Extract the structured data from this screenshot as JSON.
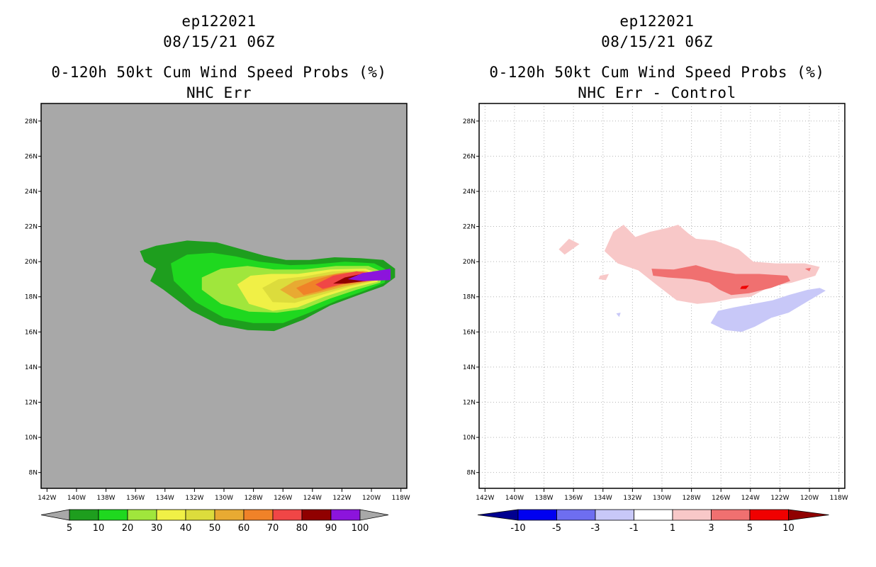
{
  "colors": {
    "land_gray": "#a8a8a8",
    "outline": "#000000",
    "grid": "#b4b4b4"
  },
  "chart_data": [
    {
      "type": "heatmap",
      "storm_id": "ep122021",
      "datetime": "08/15/21 06Z",
      "title": "0-120h 50kt Cum Wind Speed Probs (%)",
      "subtitle": "NHC Err",
      "x_ticks": [
        "142W",
        "140W",
        "138W",
        "136W",
        "134W",
        "132W",
        "130W",
        "128W",
        "126W",
        "124W",
        "122W",
        "120W",
        "118W"
      ],
      "x_values": [
        -142,
        -140,
        -138,
        -136,
        -134,
        -132,
        -130,
        -128,
        -126,
        -124,
        -122,
        -120,
        -118
      ],
      "y_ticks": [
        "8N",
        "10N",
        "12N",
        "14N",
        "16N",
        "18N",
        "20N",
        "22N",
        "24N",
        "26N",
        "28N"
      ],
      "y_values": [
        8,
        10,
        12,
        14,
        16,
        18,
        20,
        22,
        24,
        26,
        28
      ],
      "xlim": [
        -142.4,
        -117.6
      ],
      "ylim": [
        7.1,
        29.0
      ],
      "grid": false,
      "colorbar": {
        "levels": [
          "5",
          "10",
          "20",
          "30",
          "40",
          "50",
          "60",
          "70",
          "80",
          "90",
          "100"
        ],
        "colors": [
          "#1e9e1e",
          "#1fd81f",
          "#a0e63c",
          "#f0f046",
          "#dcdc3c",
          "#e8aa32",
          "#f08228",
          "#f04646",
          "#900000",
          "#8c14dc"
        ],
        "end_colors": [
          "#a8a8a8",
          "#a8a8a8"
        ]
      },
      "contours": [
        {
          "level": 5,
          "color": "#1e9e1e",
          "points": [
            [
              -135.7,
              20.6
            ],
            [
              -134.6,
              20.9
            ],
            [
              -132.5,
              21.2
            ],
            [
              -130.5,
              21.1
            ],
            [
              -128.8,
              20.7
            ],
            [
              -127.3,
              20.35
            ],
            [
              -125.8,
              20.1
            ],
            [
              -124.2,
              20.1
            ],
            [
              -122.5,
              20.25
            ],
            [
              -120.8,
              20.2
            ],
            [
              -119.2,
              20.1
            ],
            [
              -118.4,
              19.6
            ],
            [
              -118.4,
              19.1
            ],
            [
              -119.2,
              18.6
            ],
            [
              -121.2,
              18.0
            ],
            [
              -122.8,
              17.5
            ],
            [
              -124.6,
              16.7
            ],
            [
              -126.6,
              16.05
            ],
            [
              -128.4,
              16.1
            ],
            [
              -130.3,
              16.4
            ],
            [
              -132.2,
              17.2
            ],
            [
              -134.1,
              18.4
            ],
            [
              -135.0,
              18.9
            ],
            [
              -134.6,
              19.6
            ],
            [
              -135.4,
              20.0
            ]
          ]
        },
        {
          "level": 10,
          "color": "#1fd81f",
          "points": [
            [
              -133.6,
              19.9
            ],
            [
              -132.5,
              20.4
            ],
            [
              -130.8,
              20.5
            ],
            [
              -129.2,
              20.3
            ],
            [
              -127.6,
              20.0
            ],
            [
              -125.5,
              19.8
            ],
            [
              -123.8,
              19.85
            ],
            [
              -121.8,
              20.0
            ],
            [
              -119.8,
              19.9
            ],
            [
              -118.9,
              19.5
            ],
            [
              -119.1,
              18.8
            ],
            [
              -120.6,
              18.3
            ],
            [
              -122.3,
              17.8
            ],
            [
              -124.2,
              17.1
            ],
            [
              -126.0,
              16.5
            ],
            [
              -128.0,
              16.5
            ],
            [
              -130.0,
              16.8
            ],
            [
              -131.9,
              17.7
            ],
            [
              -133.4,
              18.9
            ]
          ]
        },
        {
          "level": 20,
          "color": "#a0e63c",
          "points": [
            [
              -131.5,
              19.1
            ],
            [
              -130.2,
              19.6
            ],
            [
              -128.4,
              19.75
            ],
            [
              -126.6,
              19.55
            ],
            [
              -124.6,
              19.55
            ],
            [
              -122.4,
              19.75
            ],
            [
              -120.2,
              19.75
            ],
            [
              -119.2,
              19.4
            ],
            [
              -119.4,
              18.8
            ],
            [
              -121.0,
              18.4
            ],
            [
              -122.8,
              17.9
            ],
            [
              -124.6,
              17.3
            ],
            [
              -126.4,
              17.1
            ],
            [
              -128.3,
              17.15
            ],
            [
              -130.2,
              17.6
            ],
            [
              -131.5,
              18.4
            ]
          ]
        },
        {
          "level": 30,
          "color": "#f0f046",
          "points": [
            [
              -129.1,
              18.7
            ],
            [
              -128.2,
              19.2
            ],
            [
              -126.8,
              19.3
            ],
            [
              -125.0,
              19.3
            ],
            [
              -122.8,
              19.55
            ],
            [
              -120.4,
              19.6
            ],
            [
              -119.4,
              19.3
            ],
            [
              -119.6,
              18.85
            ],
            [
              -121.3,
              18.5
            ],
            [
              -123.2,
              18.0
            ],
            [
              -125.0,
              17.4
            ],
            [
              -126.7,
              17.2
            ],
            [
              -128.3,
              17.6
            ]
          ]
        },
        {
          "level": 40,
          "color": "#dcdc3c",
          "points": [
            [
              -127.4,
              18.5
            ],
            [
              -126.3,
              19.0
            ],
            [
              -124.6,
              19.15
            ],
            [
              -122.6,
              19.45
            ],
            [
              -120.5,
              19.5
            ],
            [
              -119.6,
              19.25
            ],
            [
              -119.8,
              18.9
            ],
            [
              -121.6,
              18.55
            ],
            [
              -123.4,
              18.1
            ],
            [
              -125.2,
              17.65
            ],
            [
              -126.7,
              17.7
            ]
          ]
        },
        {
          "level": 50,
          "color": "#e8aa32",
          "points": [
            [
              -126.2,
              18.4
            ],
            [
              -125.2,
              18.9
            ],
            [
              -123.6,
              19.15
            ],
            [
              -121.8,
              19.4
            ],
            [
              -120.3,
              19.45
            ],
            [
              -119.7,
              19.2
            ],
            [
              -120.0,
              18.9
            ],
            [
              -121.8,
              18.6
            ],
            [
              -123.6,
              18.2
            ],
            [
              -125.2,
              17.9
            ]
          ]
        },
        {
          "level": 60,
          "color": "#f08228",
          "points": [
            [
              -125.1,
              18.5
            ],
            [
              -123.9,
              18.95
            ],
            [
              -122.4,
              19.3
            ],
            [
              -120.6,
              19.45
            ],
            [
              -119.7,
              19.2
            ],
            [
              -120.1,
              18.9
            ],
            [
              -121.9,
              18.7
            ],
            [
              -123.6,
              18.3
            ],
            [
              -124.6,
              18.1
            ]
          ]
        },
        {
          "level": 70,
          "color": "#f04646",
          "points": [
            [
              -123.8,
              18.7
            ],
            [
              -122.6,
              19.2
            ],
            [
              -121.0,
              19.45
            ],
            [
              -119.7,
              19.25
            ],
            [
              -120.2,
              18.9
            ],
            [
              -121.9,
              18.75
            ],
            [
              -123.3,
              18.45
            ]
          ]
        },
        {
          "level": 80,
          "color": "#900000",
          "points": [
            [
              -122.6,
              18.75
            ],
            [
              -121.8,
              19.1
            ],
            [
              -120.4,
              19.35
            ],
            [
              -119.8,
              19.2
            ],
            [
              -120.4,
              18.9
            ],
            [
              -121.8,
              18.75
            ]
          ]
        },
        {
          "level": 90,
          "color": "#8c14dc",
          "points": [
            [
              -121.6,
              19.0
            ],
            [
              -120.6,
              19.35
            ],
            [
              -118.7,
              19.6
            ],
            [
              -118.7,
              18.95
            ],
            [
              -120.6,
              18.9
            ]
          ]
        }
      ]
    },
    {
      "type": "heatmap",
      "storm_id": "ep122021",
      "datetime": "08/15/21 06Z",
      "title": "0-120h 50kt Cum Wind Speed Probs (%)",
      "subtitle": "NHC Err - Control",
      "x_ticks": [
        "142W",
        "140W",
        "138W",
        "136W",
        "134W",
        "132W",
        "130W",
        "128W",
        "126W",
        "124W",
        "122W",
        "120W",
        "118W"
      ],
      "x_values": [
        -142,
        -140,
        -138,
        -136,
        -134,
        -132,
        -130,
        -128,
        -126,
        -124,
        -122,
        -120,
        -118
      ],
      "y_ticks": [
        "8N",
        "10N",
        "12N",
        "14N",
        "16N",
        "18N",
        "20N",
        "22N",
        "24N",
        "26N",
        "28N"
      ],
      "y_values": [
        8,
        10,
        12,
        14,
        16,
        18,
        20,
        22,
        24,
        26,
        28
      ],
      "xlim": [
        -142.4,
        -117.6
      ],
      "ylim": [
        7.1,
        29.0
      ],
      "grid": true,
      "colorbar": {
        "levels": [
          "-10",
          "-5",
          "-3",
          "-1",
          "1",
          "3",
          "5",
          "10"
        ],
        "colors": [
          "#0000f0",
          "#6e6ef0",
          "#c8c8f8",
          "#ffffff",
          "#f8c8c8",
          "#f07070",
          "#f00000"
        ],
        "end_colors": [
          "#000090",
          "#900000"
        ]
      },
      "contours": [
        {
          "level": 1,
          "color": "#f8c8c8",
          "points": [
            [
              -133.9,
              20.6
            ],
            [
              -133.3,
              21.7
            ],
            [
              -132.6,
              22.1
            ],
            [
              -131.8,
              21.4
            ],
            [
              -130.8,
              21.7
            ],
            [
              -129.7,
              21.9
            ],
            [
              -128.9,
              22.1
            ],
            [
              -128.2,
              21.6
            ],
            [
              -127.7,
              21.3
            ],
            [
              -126.4,
              21.2
            ],
            [
              -124.8,
              20.7
            ],
            [
              -123.8,
              20.0
            ],
            [
              -122.3,
              19.9
            ],
            [
              -120.3,
              19.9
            ],
            [
              -119.3,
              19.7
            ],
            [
              -119.6,
              19.2
            ],
            [
              -121.2,
              18.8
            ],
            [
              -122.6,
              18.6
            ],
            [
              -124.0,
              18.0
            ],
            [
              -125.2,
              17.9
            ],
            [
              -126.4,
              17.7
            ],
            [
              -127.6,
              17.6
            ],
            [
              -129.0,
              17.8
            ],
            [
              -130.4,
              18.7
            ],
            [
              -131.6,
              19.5
            ],
            [
              -133.0,
              19.9
            ]
          ]
        },
        {
          "level": 1,
          "color": "#f8c8c8",
          "points": [
            [
              -137.0,
              20.7
            ],
            [
              -136.3,
              21.3
            ],
            [
              -135.6,
              21.0
            ],
            [
              -136.6,
              20.4
            ]
          ]
        },
        {
          "level": 1,
          "color": "#f8c8c8",
          "points": [
            [
              -134.2,
              19.2
            ],
            [
              -133.6,
              19.3
            ],
            [
              -133.8,
              18.95
            ],
            [
              -134.3,
              19.0
            ]
          ]
        },
        {
          "level": 3,
          "color": "#f07070",
          "points": [
            [
              -130.7,
              19.6
            ],
            [
              -129.2,
              19.55
            ],
            [
              -127.7,
              19.8
            ],
            [
              -126.5,
              19.5
            ],
            [
              -125.0,
              19.3
            ],
            [
              -123.4,
              19.3
            ],
            [
              -121.5,
              19.2
            ],
            [
              -121.3,
              18.9
            ],
            [
              -122.6,
              18.5
            ],
            [
              -124.1,
              18.2
            ],
            [
              -125.3,
              18.1
            ],
            [
              -126.1,
              18.4
            ],
            [
              -126.8,
              18.8
            ],
            [
              -128.0,
              19.0
            ],
            [
              -129.6,
              19.1
            ],
            [
              -130.6,
              19.2
            ]
          ]
        },
        {
          "level": 3,
          "color": "#f07070",
          "points": [
            [
              -120.3,
              19.6
            ],
            [
              -119.9,
              19.65
            ],
            [
              -120.0,
              19.45
            ]
          ]
        },
        {
          "level": 5,
          "color": "#f00000",
          "points": [
            [
              -124.6,
              18.6
            ],
            [
              -124.1,
              18.65
            ],
            [
              -124.3,
              18.45
            ],
            [
              -124.7,
              18.45
            ]
          ]
        },
        {
          "level": -1,
          "color": "#c8c8f8",
          "points": [
            [
              -126.7,
              16.5
            ],
            [
              -126.2,
              17.2
            ],
            [
              -125.1,
              17.4
            ],
            [
              -123.8,
              17.6
            ],
            [
              -122.5,
              17.8
            ],
            [
              -121.4,
              18.1
            ],
            [
              -120.1,
              18.4
            ],
            [
              -119.3,
              18.5
            ],
            [
              -118.9,
              18.35
            ],
            [
              -119.8,
              17.9
            ],
            [
              -120.6,
              17.5
            ],
            [
              -121.4,
              17.1
            ],
            [
              -122.6,
              16.8
            ],
            [
              -123.7,
              16.3
            ],
            [
              -124.6,
              16.0
            ],
            [
              -125.7,
              16.1
            ]
          ]
        },
        {
          "level": -1,
          "color": "#c8c8f8",
          "points": [
            [
              -133.1,
              17.05
            ],
            [
              -132.8,
              17.1
            ],
            [
              -132.9,
              16.85
            ]
          ]
        }
      ]
    }
  ]
}
